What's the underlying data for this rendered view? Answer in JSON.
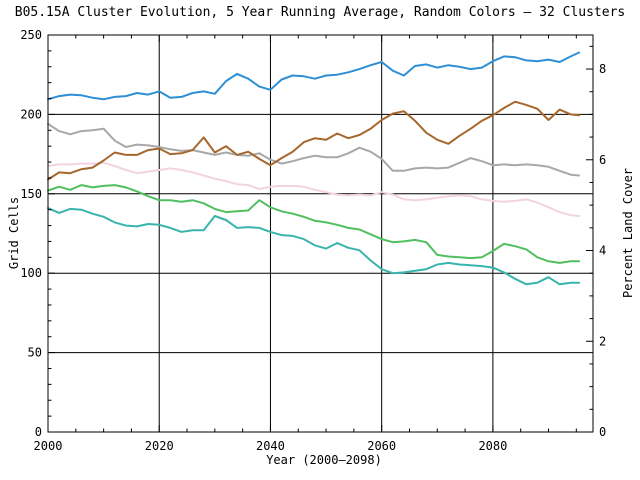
{
  "title": "B05.15A Cluster Evolution, 5 Year Running Average, Random Colors – 32 Clusters",
  "axis_color": "#000000",
  "background_color": "#ffffff",
  "chart_data": {
    "type": "line",
    "title": "B05.15A Cluster Evolution, 5 Year Running Average, Random Colors – 32 Clusters",
    "xlabel": "Year (2000–2098)",
    "ylabel_left": "Grid Cells",
    "ylabel_right": "Percent Land Cover",
    "x_range": [
      2000,
      2098
    ],
    "y_left_range": [
      0,
      250
    ],
    "y_right_range": [
      0,
      8.75
    ],
    "x_major_ticks": [
      2000,
      2020,
      2040,
      2060,
      2080
    ],
    "x_minor_step": 5,
    "y_left_major_ticks": [
      0,
      50,
      100,
      150,
      200,
      250
    ],
    "y_left_minor_step": 10,
    "y_right_major_ticks": [
      0,
      2,
      4,
      6,
      8
    ],
    "y_right_minor_step": 0.5,
    "grid": "major-both-axes",
    "legend": "none",
    "x": [
      2000,
      2002,
      2004,
      2006,
      2008,
      2010,
      2012,
      2014,
      2016,
      2018,
      2020,
      2022,
      2024,
      2026,
      2028,
      2030,
      2032,
      2034,
      2036,
      2038,
      2040,
      2042,
      2044,
      2046,
      2048,
      2050,
      2052,
      2054,
      2056,
      2058,
      2060,
      2062,
      2064,
      2066,
      2068,
      2070,
      2072,
      2074,
      2076,
      2078,
      2080,
      2082,
      2084,
      2086,
      2088,
      2090,
      2092,
      2094,
      2095.5
    ],
    "series": [
      {
        "name": "pink",
        "color": "#f3d3e3",
        "values": [
          167.5,
          168.5,
          168.5,
          169,
          169,
          169.5,
          167.5,
          165,
          163,
          164,
          165,
          166,
          165,
          163.5,
          161.5,
          159.5,
          158,
          156,
          155.5,
          153,
          154.5,
          155,
          155,
          154.5,
          152.5,
          151,
          149.5,
          149,
          149.5,
          149,
          151,
          149.5,
          146.5,
          146,
          146.5,
          147.5,
          148.5,
          149,
          148.5,
          146.5,
          145.5,
          145,
          145.5,
          146.5,
          144.5,
          141.5,
          138.5,
          136.5,
          136
        ]
      },
      {
        "name": "gray",
        "color": "#a8a8a8",
        "values": [
          194,
          189.5,
          187.5,
          189.5,
          190,
          191,
          183.5,
          179.5,
          181,
          180.5,
          179.5,
          178,
          177,
          177.5,
          176,
          174.5,
          176,
          174.5,
          174,
          175.5,
          171.5,
          169,
          170.5,
          172.5,
          174,
          173,
          173,
          175.5,
          179,
          176.5,
          172,
          164.5,
          164.5,
          166,
          166.5,
          166,
          166.5,
          169.5,
          172.5,
          170.5,
          168,
          168.5,
          168,
          168.5,
          168,
          167,
          164.5,
          162,
          161.5
        ]
      },
      {
        "name": "brown",
        "color": "#a6672c",
        "values": [
          159,
          163.5,
          163,
          165.5,
          166.5,
          171,
          176,
          174.5,
          174.5,
          177.5,
          178.5,
          175,
          175.5,
          177.5,
          185.5,
          176,
          180,
          174.5,
          176.5,
          172,
          168,
          172.5,
          176.5,
          182.5,
          185,
          184,
          188,
          185,
          187,
          191,
          196.5,
          200.5,
          202,
          196,
          188.5,
          184,
          181.5,
          186.5,
          191,
          196,
          199.5,
          204,
          208,
          206,
          203.5,
          196.5,
          203,
          200,
          199.5
        ]
      },
      {
        "name": "green",
        "color": "#50bf5f",
        "values": [
          152,
          154.5,
          152.5,
          155.5,
          154,
          155,
          155.5,
          154,
          151.5,
          148.5,
          146,
          146,
          145,
          146,
          144,
          140.5,
          138.5,
          139,
          139.5,
          146,
          141.5,
          139,
          137.5,
          135.5,
          133,
          132,
          130.5,
          128.5,
          127.5,
          124.5,
          121.5,
          119.5,
          120,
          121,
          119.5,
          111.5,
          110.5,
          110,
          109.5,
          110,
          114,
          118.5,
          117,
          115,
          110,
          107.5,
          106.5,
          107.5,
          107.5
        ]
      },
      {
        "name": "teal",
        "color": "#39b4ac",
        "values": [
          141,
          138,
          140.5,
          140,
          137.5,
          135.5,
          132,
          130,
          129.5,
          131,
          130.5,
          128.5,
          126,
          127,
          127,
          136,
          133.5,
          128.5,
          129,
          128.5,
          126,
          124,
          123.5,
          121.5,
          117.5,
          115.5,
          119,
          116,
          114.5,
          108,
          102.5,
          100,
          100.5,
          101.5,
          102.5,
          105.5,
          106.5,
          105.5,
          105,
          104.5,
          103.5,
          100.5,
          96.5,
          93,
          94,
          97.5,
          93,
          94,
          94
        ]
      },
      {
        "name": "blue",
        "color": "#2e8fd4",
        "values": [
          209.5,
          211.5,
          212.5,
          212,
          210.5,
          209.5,
          211,
          211.5,
          213.5,
          212.5,
          214.5,
          210.5,
          211,
          213.5,
          214.5,
          213,
          221,
          225.5,
          222.5,
          217.5,
          215.5,
          222,
          224.5,
          224,
          222.5,
          224.5,
          225,
          226.5,
          228.5,
          231,
          233,
          227.5,
          224.5,
          230.5,
          231.5,
          229.5,
          231,
          230,
          228.5,
          229.5,
          233.5,
          236.5,
          236,
          234,
          233.5,
          234.5,
          233,
          236.5,
          239
        ]
      }
    ]
  }
}
